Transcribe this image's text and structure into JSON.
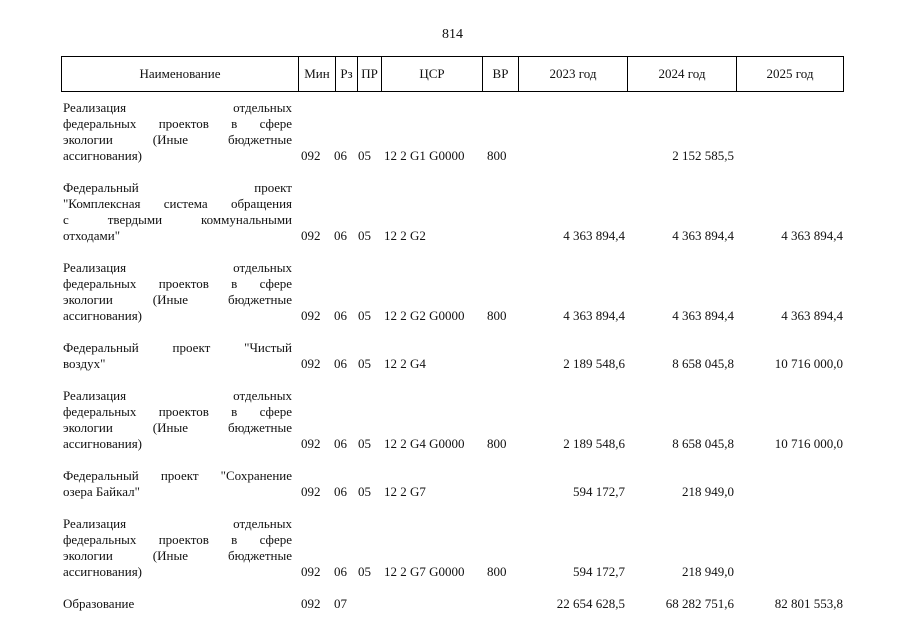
{
  "page_number": "814",
  "header": {
    "name": "Наименование",
    "min": "Мин",
    "rz": "Рз",
    "pr": "ПР",
    "csr": "ЦСР",
    "vr": "ВР",
    "y2023": "2023 год",
    "y2024": "2024 год",
    "y2025": "2025 год"
  },
  "rows": [
    {
      "name_lines": [
        "Реализация отдельных",
        "федеральных проектов в сфере",
        "экологии (Иные бюджетные",
        "ассигнования)"
      ],
      "min": "092",
      "rz": "06",
      "pr": "05",
      "csr": "12 2 G1 G0000",
      "vr": "800",
      "y2023": "",
      "y2024": "2 152 585,5",
      "y2025": ""
    },
    {
      "name_lines": [
        "Федеральный проект",
        "\"Комплексная система обращения",
        "с твердыми коммунальными",
        "отходами\""
      ],
      "min": "092",
      "rz": "06",
      "pr": "05",
      "csr": "12 2 G2",
      "vr": "",
      "y2023": "4 363 894,4",
      "y2024": "4 363 894,4",
      "y2025": "4 363 894,4"
    },
    {
      "name_lines": [
        "Реализация отдельных",
        "федеральных проектов в сфере",
        "экологии (Иные бюджетные",
        "ассигнования)"
      ],
      "min": "092",
      "rz": "06",
      "pr": "05",
      "csr": "12 2 G2 G0000",
      "vr": "800",
      "y2023": "4 363 894,4",
      "y2024": "4 363 894,4",
      "y2025": "4 363 894,4"
    },
    {
      "name_lines": [
        "Федеральный проект \"Чистый",
        "воздух\""
      ],
      "min": "092",
      "rz": "06",
      "pr": "05",
      "csr": "12 2 G4",
      "vr": "",
      "y2023": "2 189 548,6",
      "y2024": "8 658 045,8",
      "y2025": "10 716 000,0"
    },
    {
      "name_lines": [
        "Реализация отдельных",
        "федеральных проектов в сфере",
        "экологии (Иные бюджетные",
        "ассигнования)"
      ],
      "min": "092",
      "rz": "06",
      "pr": "05",
      "csr": "12 2 G4 G0000",
      "vr": "800",
      "y2023": "2 189 548,6",
      "y2024": "8 658 045,8",
      "y2025": "10 716 000,0"
    },
    {
      "name_lines": [
        "Федеральный проект \"Сохранение",
        "озера Байкал\""
      ],
      "min": "092",
      "rz": "06",
      "pr": "05",
      "csr": "12 2 G7",
      "vr": "",
      "y2023": "594 172,7",
      "y2024": "218 949,0",
      "y2025": ""
    },
    {
      "name_lines": [
        "Реализация отдельных",
        "федеральных проектов в сфере",
        "экологии (Иные бюджетные",
        "ассигнования)"
      ],
      "min": "092",
      "rz": "06",
      "pr": "05",
      "csr": "12 2 G7 G0000",
      "vr": "800",
      "y2023": "594 172,7",
      "y2024": "218 949,0",
      "y2025": ""
    },
    {
      "name_lines": [
        "Образование"
      ],
      "min": "092",
      "rz": "07",
      "pr": "",
      "csr": "",
      "vr": "",
      "y2023": "22 654 628,5",
      "y2024": "68 282 751,6",
      "y2025": "82 801 553,8"
    }
  ]
}
